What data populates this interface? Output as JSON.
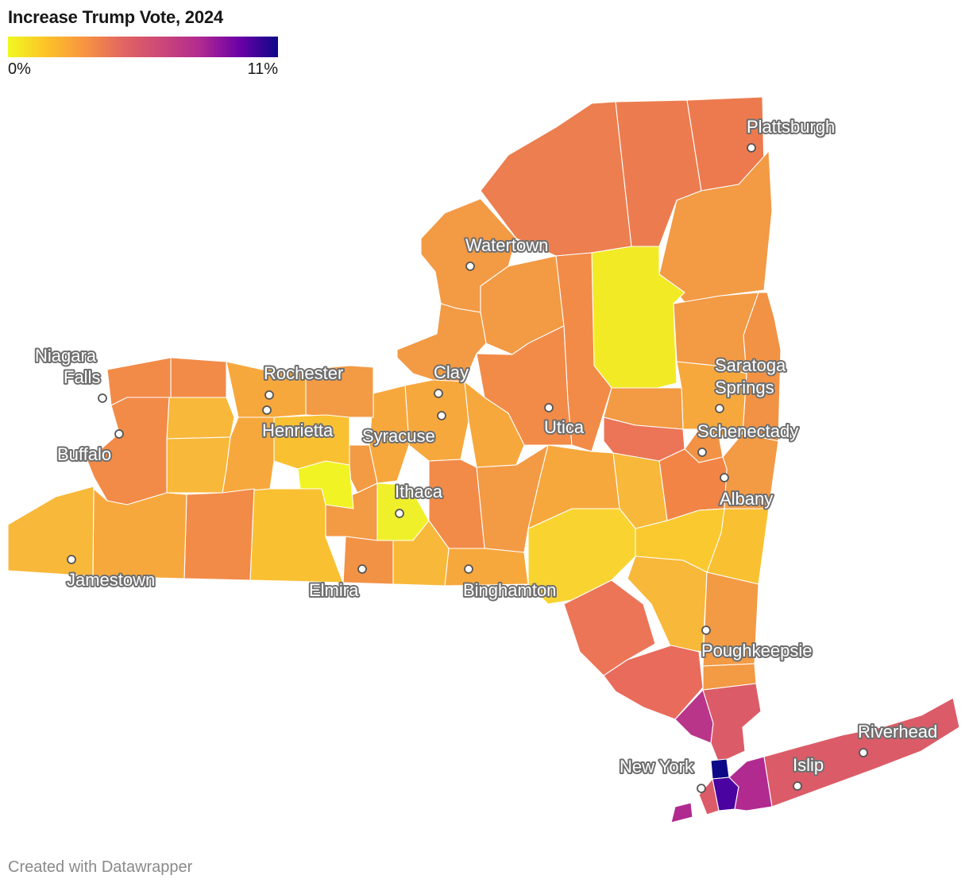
{
  "title": "Increase Trump Vote, 2024",
  "legend": {
    "min_label": "0%",
    "max_label": "11%",
    "min_value": 0,
    "max_value": 11,
    "colors": [
      "#f0f921",
      "#fdb42f",
      "#f48849",
      "#db5c68",
      "#b83289",
      "#8b0aa5",
      "#5302a3",
      "#0d0887"
    ]
  },
  "cities": [
    {
      "name": "Plattsburgh"
    },
    {
      "name": "Watertown"
    },
    {
      "name": "Niagara"
    },
    {
      "name": "Falls"
    },
    {
      "name": "Rochester"
    },
    {
      "name": "Clay"
    },
    {
      "name": "Saratoga"
    },
    {
      "name": "Springs"
    },
    {
      "name": "Henrietta"
    },
    {
      "name": "Syracuse"
    },
    {
      "name": "Utica"
    },
    {
      "name": "Schenectady"
    },
    {
      "name": "Buffalo"
    },
    {
      "name": "Ithaca"
    },
    {
      "name": "Albany"
    },
    {
      "name": "Jamestown"
    },
    {
      "name": "Elmira"
    },
    {
      "name": "Binghamton"
    },
    {
      "name": "Poughkeepsie"
    },
    {
      "name": "Riverhead"
    },
    {
      "name": "New York"
    },
    {
      "name": "Islip"
    }
  ],
  "footer": "Created with Datawrapper"
}
